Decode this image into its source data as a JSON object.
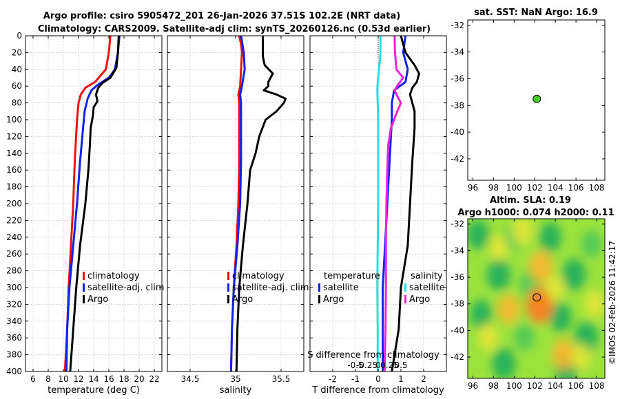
{
  "figure": {
    "title_line1": "Argo profile: csiro 5905472_201 26-Jan-2026 37.51S 102.2E (NRT data)",
    "title_line2": "Climatology: CARS2009. Satellite-adj clim: synTS_20260126.nc (0.53d earlier)",
    "side_label": "©IMOS 02-Feb-2026 11:42:17"
  },
  "colors": {
    "climatology": "#ee1111",
    "satellite_adj": "#1122ee",
    "argo": "#000000",
    "t_satellite": "#1122ee",
    "t_argo": "#000000",
    "s_satellite": "#22e0e8",
    "s_argo": "#ee22dd",
    "marker": "#44cc22"
  },
  "chart_data": [
    {
      "type": "line",
      "panel": "temperature",
      "xlabel": "temperature (deg C)",
      "xlim": [
        5,
        23
      ],
      "xticks": [
        6,
        8,
        10,
        12,
        14,
        16,
        18,
        20,
        22
      ],
      "ylim": [
        0,
        400
      ],
      "yticks": [
        0,
        20,
        40,
        60,
        80,
        100,
        120,
        140,
        160,
        180,
        200,
        220,
        240,
        260,
        280,
        300,
        320,
        340,
        360,
        380,
        400
      ],
      "grid": true,
      "legend": [
        "climatology",
        "satellite-adj. clim",
        "Argo"
      ],
      "series": [
        {
          "name": "climatology",
          "depth": [
            0,
            20,
            40,
            55,
            62,
            70,
            80,
            100,
            150,
            200,
            250,
            300,
            350,
            400
          ],
          "values": [
            16.2,
            16.0,
            15.6,
            14.2,
            12.9,
            12.3,
            12.0,
            11.8,
            11.5,
            11.3,
            11.0,
            10.7,
            10.5,
            10.2
          ]
        },
        {
          "name": "satellite-adj. clim",
          "depth": [
            0,
            20,
            40,
            50,
            58,
            65,
            75,
            90,
            120,
            150,
            200,
            250,
            300,
            350,
            400
          ],
          "values": [
            17.4,
            17.2,
            16.8,
            16.0,
            14.6,
            13.7,
            13.2,
            12.8,
            12.5,
            12.2,
            11.8,
            11.3,
            10.8,
            10.5,
            10.4
          ]
        },
        {
          "name": "Argo",
          "depth": [
            0,
            20,
            38,
            44,
            50,
            56,
            62,
            70,
            78,
            85,
            95,
            110,
            130,
            160,
            200,
            250,
            300,
            350,
            400
          ],
          "values": [
            17.3,
            17.2,
            17.0,
            16.6,
            16.2,
            15.2,
            14.6,
            14.3,
            14.5,
            14.0,
            13.9,
            13.6,
            13.5,
            13.3,
            12.9,
            12.2,
            11.7,
            11.3,
            10.9
          ]
        }
      ]
    },
    {
      "type": "line",
      "panel": "salinity",
      "xlabel": "salinity",
      "xlim": [
        34.25,
        35.75
      ],
      "xticks": [
        34.5,
        35,
        35.5
      ],
      "ylim": [
        0,
        400
      ],
      "grid": true,
      "legend": [
        "climatology",
        "satellite-adj. clim",
        "Argo"
      ],
      "series": [
        {
          "name": "climatology",
          "depth": [
            0,
            10,
            20,
            40,
            60,
            70,
            80,
            100,
            150,
            200,
            250,
            300,
            350,
            400
          ],
          "values": [
            35.04,
            35.06,
            35.07,
            35.06,
            35.05,
            35.03,
            35.04,
            35.04,
            35.04,
            35.03,
            35.01,
            34.98,
            34.96,
            34.95
          ]
        },
        {
          "name": "satellite-adj. clim",
          "depth": [
            0,
            20,
            40,
            60,
            70,
            80,
            100,
            150,
            200,
            250,
            300,
            350,
            400
          ],
          "values": [
            35.06,
            35.09,
            35.1,
            35.07,
            35.05,
            35.06,
            35.06,
            35.06,
            35.05,
            35.02,
            34.98,
            34.96,
            34.95
          ]
        },
        {
          "name": "Argo",
          "depth": [
            0,
            10,
            25,
            35,
            45,
            55,
            60,
            65,
            70,
            75,
            80,
            90,
            100,
            120,
            140,
            160,
            200,
            250,
            300,
            350,
            400
          ],
          "values": [
            35.3,
            35.3,
            35.3,
            35.32,
            35.41,
            35.36,
            35.36,
            35.31,
            35.45,
            35.55,
            35.53,
            35.45,
            35.33,
            35.26,
            35.22,
            35.16,
            35.13,
            35.08,
            35.04,
            35.02,
            35.01
          ]
        }
      ]
    },
    {
      "type": "line",
      "panel": "differences",
      "xlabel": "T difference from climatology",
      "xlabel_top": "S difference from climatology",
      "xlim": [
        -3,
        3
      ],
      "xticks": [
        -2,
        -1,
        0,
        1,
        2
      ],
      "xtick_labels": [
        "-2",
        "-1",
        "0",
        "1",
        "2"
      ],
      "s_xlim": [
        -1.5,
        1.5
      ],
      "s_xticks": [
        -0.5,
        -0.25,
        0,
        0.25,
        0.5
      ],
      "s_xtick_labels": [
        "-0.5",
        "-0.25",
        "0",
        "0.25",
        "0.5"
      ],
      "ylim": [
        0,
        400
      ],
      "grid": true,
      "legend_titles": [
        "temperature",
        "salinity"
      ],
      "legend": [
        "satellite",
        "Argo",
        "satellite",
        "Argo"
      ],
      "series": [
        {
          "name": "temperature satellite",
          "depth": [
            0,
            20,
            40,
            55,
            65,
            80,
            100,
            150,
            200,
            250,
            300,
            350,
            400
          ],
          "values": [
            1.2,
            1.1,
            1.3,
            1.2,
            0.7,
            0.6,
            0.6,
            0.5,
            0.4,
            0.3,
            0.2,
            0.2,
            0.2
          ]
        },
        {
          "name": "temperature Argo",
          "depth": [
            0,
            20,
            35,
            45,
            55,
            62,
            70,
            80,
            90,
            110,
            150,
            200,
            250,
            300,
            350,
            400
          ],
          "values": [
            1.0,
            1.2,
            1.6,
            1.8,
            1.7,
            1.5,
            1.4,
            1.5,
            1.6,
            1.6,
            1.5,
            1.4,
            1.3,
            1.0,
            0.9,
            0.6
          ]
        },
        {
          "name": "salinity satellite",
          "depth": [
            0,
            20,
            40,
            55,
            65,
            80,
            100,
            150,
            200,
            250,
            300,
            350,
            400
          ],
          "values": [
            0.05,
            0.05,
            0.02,
            -0.01,
            -0.02,
            -0.01,
            0.0,
            0.0,
            0.0,
            -0.01,
            -0.02,
            -0.01,
            -0.01
          ]
        },
        {
          "name": "salinity Argo",
          "depth": [
            0,
            20,
            40,
            50,
            58,
            65,
            72,
            80,
            90,
            100,
            110,
            130,
            160,
            200,
            250,
            300,
            350,
            400
          ],
          "values": [
            0.36,
            0.37,
            0.4,
            0.55,
            0.44,
            0.36,
            0.42,
            0.5,
            0.42,
            0.35,
            0.28,
            0.22,
            0.2,
            0.18,
            0.17,
            0.17,
            0.16,
            0.14
          ]
        }
      ]
    },
    {
      "type": "scatter",
      "panel": "sst_map",
      "title": "sat. SST: NaN Argo: 16.9",
      "xlim": [
        95.5,
        108.8
      ],
      "xticks": [
        96,
        98,
        100,
        102,
        104,
        106,
        108
      ],
      "ylim": [
        -43.6,
        -31.6
      ],
      "yticks": [
        -32,
        -34,
        -36,
        -38,
        -40,
        -42
      ],
      "x": [
        102.2
      ],
      "y": [
        -37.51
      ]
    },
    {
      "type": "heatmap",
      "panel": "sla_map",
      "title_line1": "Altim. SLA: 0.19",
      "title_line2": "Argo h1000: 0.074 h2000: 0.11",
      "xlim": [
        95.5,
        108.8
      ],
      "xticks": [
        96,
        98,
        100,
        102,
        104,
        106,
        108
      ],
      "ylim": [
        -43.6,
        -31.6
      ],
      "yticks": [
        -32,
        -34,
        -36,
        -38,
        -40,
        -42
      ],
      "x": [
        102.2
      ],
      "y": [
        -37.51
      ],
      "blobs": [
        {
          "lon": 96.5,
          "lat": -32.8,
          "v": -0.5
        },
        {
          "lon": 98.5,
          "lat": -35.8,
          "v": -0.6
        },
        {
          "lon": 96.8,
          "lat": -38.8,
          "v": -0.5
        },
        {
          "lon": 99.0,
          "lat": -42.5,
          "v": -0.6
        },
        {
          "lon": 101.0,
          "lat": -40.5,
          "v": -0.4
        },
        {
          "lon": 103.5,
          "lat": -33.0,
          "v": -0.5
        },
        {
          "lon": 105.8,
          "lat": -35.8,
          "v": -0.6
        },
        {
          "lon": 107.5,
          "lat": -33.5,
          "v": -0.4
        },
        {
          "lon": 104.5,
          "lat": -39.0,
          "v": -0.5
        },
        {
          "lon": 107.0,
          "lat": -40.5,
          "v": -0.6
        },
        {
          "lon": 105.0,
          "lat": -43.0,
          "v": -0.5
        },
        {
          "lon": 101.5,
          "lat": -36.5,
          "v": -0.4
        },
        {
          "lon": 100.0,
          "lat": -33.0,
          "v": -0.3
        },
        {
          "lon": 102.5,
          "lat": -38.1,
          "v": 0.8
        },
        {
          "lon": 102.6,
          "lat": -35.2,
          "v": 0.6
        },
        {
          "lon": 99.5,
          "lat": -38.4,
          "v": 0.5
        },
        {
          "lon": 97.5,
          "lat": -40.5,
          "v": 0.4
        },
        {
          "lon": 100.8,
          "lat": -32.5,
          "v": 0.45
        },
        {
          "lon": 104.8,
          "lat": -41.8,
          "v": 0.55
        },
        {
          "lon": 107.8,
          "lat": -38.0,
          "v": 0.4
        },
        {
          "lon": 106.5,
          "lat": -42.0,
          "v": 0.35
        },
        {
          "lon": 98.5,
          "lat": -33.8,
          "v": 0.3
        },
        {
          "lon": 104.0,
          "lat": -36.8,
          "v": 0.3
        }
      ]
    }
  ]
}
